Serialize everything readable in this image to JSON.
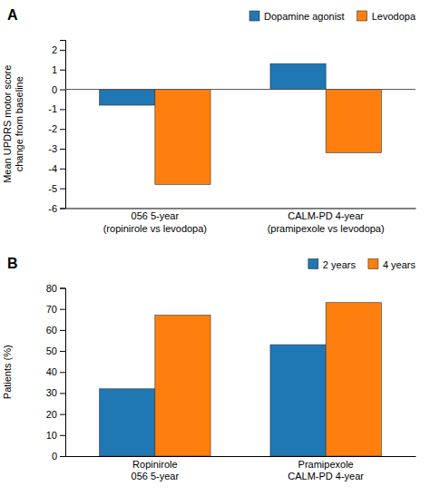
{
  "chart_data": [
    {
      "type": "bar",
      "title": "A",
      "categories": [
        "056 5-year\n(ropinirole vs levodopa)",
        "CALM-PD 4-year\n(pramipexole vs levodopa)"
      ],
      "series": [
        {
          "name": "Dopamine agonist",
          "values": [
            -0.8,
            1.3
          ]
        },
        {
          "name": "Levodopa",
          "values": [
            -4.8,
            -3.2
          ]
        }
      ],
      "y_label": "Mean UPDRS motor score\nchange from baseline",
      "ylim": [
        -6,
        2.5
      ],
      "yticks": [
        -6,
        -5,
        -4,
        -3,
        -2,
        -1,
        0,
        1,
        2
      ],
      "grid": false,
      "legend": "top-right"
    },
    {
      "type": "bar",
      "title": "B",
      "categories": [
        "Ropinirole\n056 5-year",
        "Pramipexole\nCALM-PD 4-year"
      ],
      "series": [
        {
          "name": "2 years",
          "values": [
            32,
            53
          ]
        },
        {
          "name": "4 years",
          "values": [
            67,
            73
          ]
        }
      ],
      "y_label": "Patients (%)",
      "ylim": [
        0,
        80
      ],
      "yticks": [
        0,
        10,
        20,
        30,
        40,
        50,
        60,
        70,
        80
      ],
      "grid": false,
      "legend": "top-right"
    }
  ]
}
